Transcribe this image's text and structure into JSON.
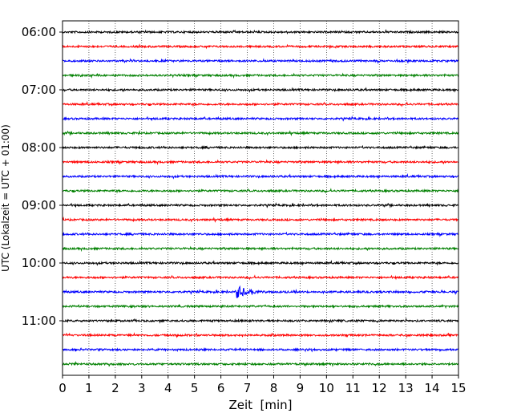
{
  "chart_data": {
    "type": "line",
    "title": "",
    "xlabel": "Zeit  [min]",
    "ylabel": "UTC (Lokalzeit = UTC + 01:00)",
    "xlim": [
      0,
      15
    ],
    "x_ticks": [
      0,
      1,
      2,
      3,
      4,
      5,
      6,
      7,
      8,
      9,
      10,
      11,
      12,
      13,
      14,
      15
    ],
    "grid": "vertical dotted lines at each minute",
    "y_ticks": [
      "06:00",
      "07:00",
      "08:00",
      "09:00",
      "10:00",
      "11:00"
    ],
    "trace_interval_minutes": 15,
    "colors_cycle": [
      "#000000",
      "#ff0000",
      "#0000ff",
      "#008000"
    ],
    "series": [
      {
        "start": "06:00",
        "color": "#000000"
      },
      {
        "start": "06:15",
        "color": "#ff0000"
      },
      {
        "start": "06:30",
        "color": "#0000ff"
      },
      {
        "start": "06:45",
        "color": "#008000"
      },
      {
        "start": "07:00",
        "color": "#000000"
      },
      {
        "start": "07:15",
        "color": "#ff0000"
      },
      {
        "start": "07:30",
        "color": "#0000ff"
      },
      {
        "start": "07:45",
        "color": "#008000"
      },
      {
        "start": "08:00",
        "color": "#000000"
      },
      {
        "start": "08:15",
        "color": "#ff0000"
      },
      {
        "start": "08:30",
        "color": "#0000ff"
      },
      {
        "start": "08:45",
        "color": "#008000"
      },
      {
        "start": "09:00",
        "color": "#000000"
      },
      {
        "start": "09:15",
        "color": "#ff0000"
      },
      {
        "start": "09:30",
        "color": "#0000ff"
      },
      {
        "start": "09:45",
        "color": "#008000"
      },
      {
        "start": "10:00",
        "color": "#000000"
      },
      {
        "start": "10:15",
        "color": "#ff0000"
      },
      {
        "start": "10:30",
        "color": "#0000ff",
        "event": {
          "onset_min": 6.6,
          "peak_min": 6.7,
          "duration_min": 1.5,
          "amplitude": 3.5
        }
      },
      {
        "start": "10:45",
        "color": "#008000"
      },
      {
        "start": "11:00",
        "color": "#000000"
      },
      {
        "start": "11:15",
        "color": "#ff0000"
      },
      {
        "start": "11:30",
        "color": "#0000ff"
      },
      {
        "start": "11:45",
        "color": "#008000"
      }
    ]
  }
}
